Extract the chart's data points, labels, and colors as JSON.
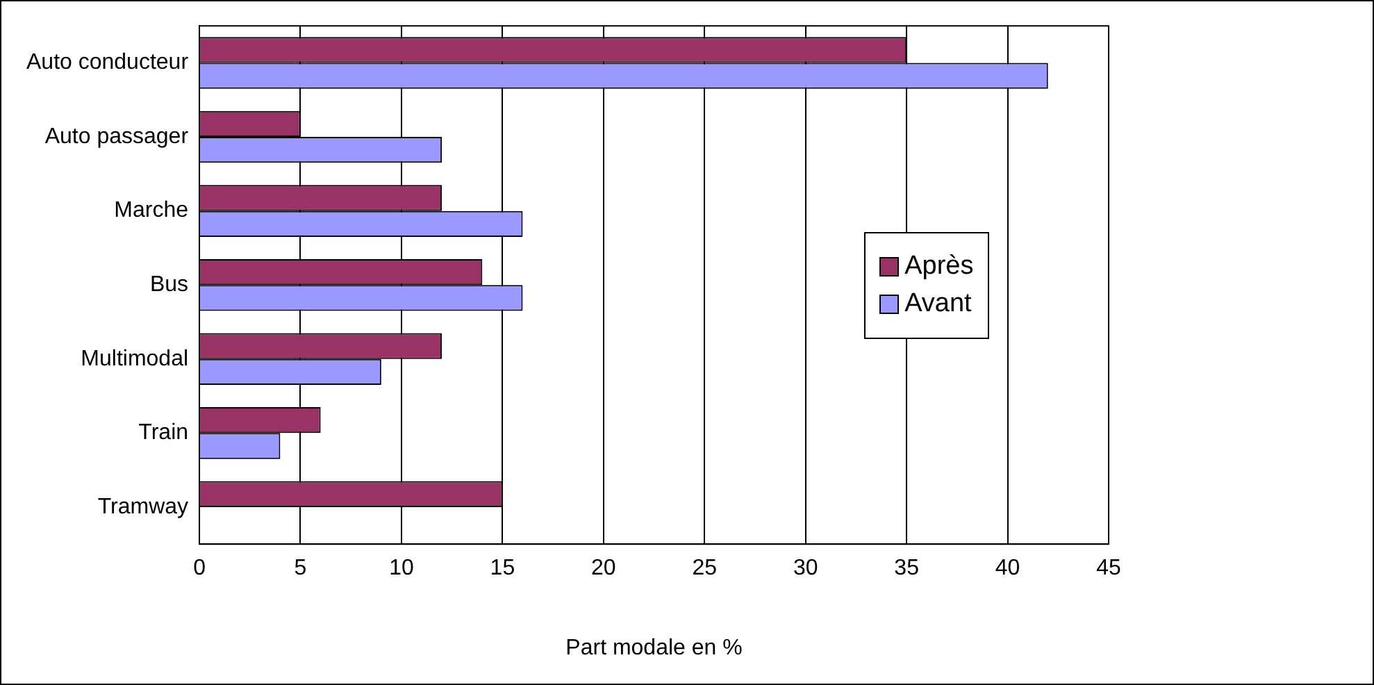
{
  "chart_data": {
    "type": "bar",
    "orientation": "horizontal",
    "xlabel": "Part modale en %",
    "categories": [
      "Auto conducteur",
      "Auto passager",
      "Marche",
      "Bus",
      "Multimodal",
      "Train",
      "Tramway"
    ],
    "series": [
      {
        "name": "Après",
        "color": "#993366",
        "values": [
          35,
          5,
          12,
          14,
          12,
          6,
          15
        ]
      },
      {
        "name": "Avant",
        "color": "#9999ff",
        "values": [
          42,
          12,
          16,
          16,
          9,
          4,
          0
        ]
      }
    ],
    "xlim": [
      0,
      45
    ],
    "xticks": [
      0,
      5,
      10,
      15,
      20,
      25,
      30,
      35,
      40,
      45
    ],
    "grid": "x",
    "legend": "right"
  }
}
